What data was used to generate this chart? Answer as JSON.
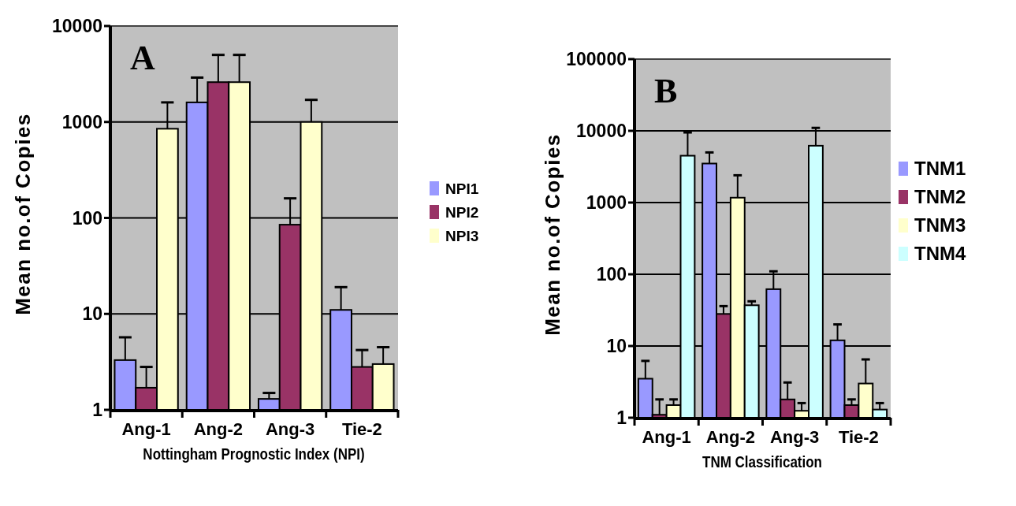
{
  "chart_data": [
    {
      "type": "bar",
      "title": "A",
      "xlabel": "Nottingham Prognostic Index (NPI)",
      "ylabel": "Mean no.of Copies",
      "categories": [
        "Ang-1",
        "Ang-2",
        "Ang-3",
        "Tie-2"
      ],
      "log": true,
      "ylim": [
        1,
        10000
      ],
      "yticks": [
        1,
        10,
        100,
        1000,
        10000
      ],
      "grid": "y",
      "legend": "right",
      "series": [
        {
          "name": "NPI1",
          "color": "#9999ff",
          "values": [
            3.3,
            1600,
            1.3,
            11
          ],
          "errors": [
            [
              3.3,
              5.7
            ],
            [
              1600,
              2900
            ],
            [
              1.3,
              1.5
            ],
            [
              11,
              19
            ]
          ]
        },
        {
          "name": "NPI2",
          "color": "#993366",
          "values": [
            1.7,
            2600,
            85,
            2.8
          ],
          "errors": [
            [
              1.7,
              2.8
            ],
            [
              2600,
              5000
            ],
            [
              85,
              160
            ],
            [
              2.8,
              4.2
            ]
          ]
        },
        {
          "name": "NPI3",
          "color": "#ffffcc",
          "values": [
            850,
            2600,
            1000,
            3
          ],
          "errors": [
            [
              850,
              1600
            ],
            [
              2600,
              5000
            ],
            [
              1000,
              1700
            ],
            [
              3,
              4.5
            ]
          ]
        }
      ]
    },
    {
      "type": "bar",
      "title": "B",
      "xlabel": "TNM Classification",
      "ylabel": "Mean no.of Copies",
      "categories": [
        "Ang-1",
        "Ang-2",
        "Ang-3",
        "Tie-2"
      ],
      "log": true,
      "ylim": [
        1,
        100000
      ],
      "yticks": [
        1,
        10,
        100,
        1000,
        10000,
        100000
      ],
      "grid": "y",
      "legend": "right",
      "series": [
        {
          "name": "TNM1",
          "color": "#9999ff",
          "values": [
            3.5,
            3500,
            62,
            12
          ],
          "errors": [
            [
              3.5,
              6.2
            ],
            [
              3500,
              5000
            ],
            [
              62,
              110
            ],
            [
              12,
              20
            ]
          ]
        },
        {
          "name": "TNM2",
          "color": "#993366",
          "values": [
            1.1,
            28,
            1.8,
            1.5
          ],
          "errors": [
            [
              1.1,
              1.8
            ],
            [
              28,
              36
            ],
            [
              1.8,
              3.1
            ],
            [
              1.5,
              1.8
            ]
          ]
        },
        {
          "name": "TNM3",
          "color": "#ffffcc",
          "values": [
            1.5,
            1170,
            1.25,
            3
          ],
          "errors": [
            [
              1.5,
              1.8
            ],
            [
              1170,
              2400
            ],
            [
              1.25,
              1.6
            ],
            [
              3,
              6.5
            ]
          ]
        },
        {
          "name": "TNM4",
          "color": "#ccffff",
          "values": [
            4500,
            37,
            6200,
            1.3
          ],
          "errors": [
            [
              4500,
              9500
            ],
            [
              37,
              42
            ],
            [
              6200,
              11000
            ],
            [
              1.3,
              1.6
            ]
          ]
        }
      ]
    }
  ]
}
